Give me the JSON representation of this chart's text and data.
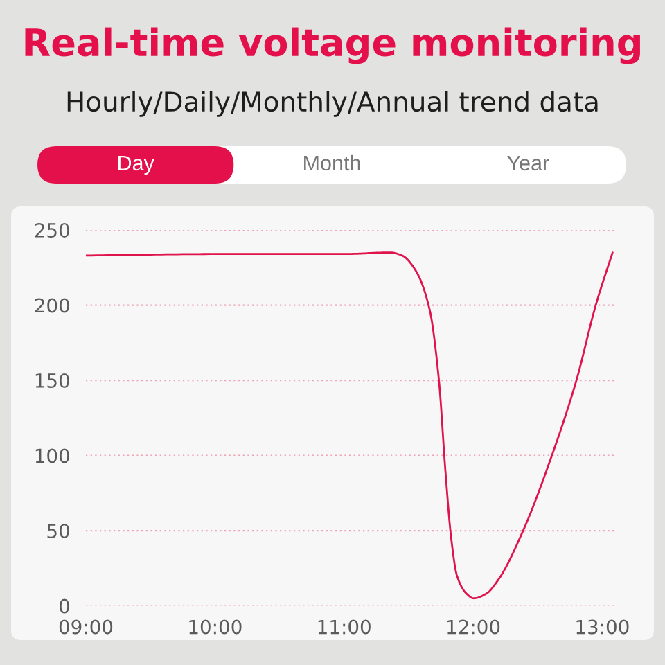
{
  "chart_data": {
    "type": "line",
    "title": "Real-time voltage monitoring",
    "subtitle": "Hourly/Daily/Monthly/Annual trend data",
    "annotations": [
      "Day",
      "Month",
      "Year"
    ],
    "x": [
      9,
      10,
      11,
      11.358,
      11.45,
      11.555,
      11.663,
      11.735,
      11.785,
      11.83,
      11.875,
      11.95,
      12.004,
      12.1,
      12.2,
      12.387,
      12.61,
      12.8,
      12.95,
      13.08
    ],
    "series": [
      {
        "color": "#e0144c",
        "values": [
          233,
          234,
          234,
          235,
          233,
          223,
          197,
          150,
          90,
          45,
          20,
          8,
          5,
          8,
          18,
          50,
          100,
          150,
          200,
          235
        ]
      }
    ],
    "xlim": [
      9,
      13.1
    ],
    "xticks": [
      {
        "value": 9,
        "label": "09:00"
      },
      {
        "value": 10,
        "label": "10:00"
      },
      {
        "value": 11,
        "label": "11:00"
      },
      {
        "value": 12,
        "label": "12:00"
      },
      {
        "value": 13,
        "label": "13:00"
      }
    ],
    "ylim": [
      0,
      250
    ],
    "yticks": [
      0,
      50,
      100,
      150,
      200,
      250
    ],
    "grid": "y"
  }
}
